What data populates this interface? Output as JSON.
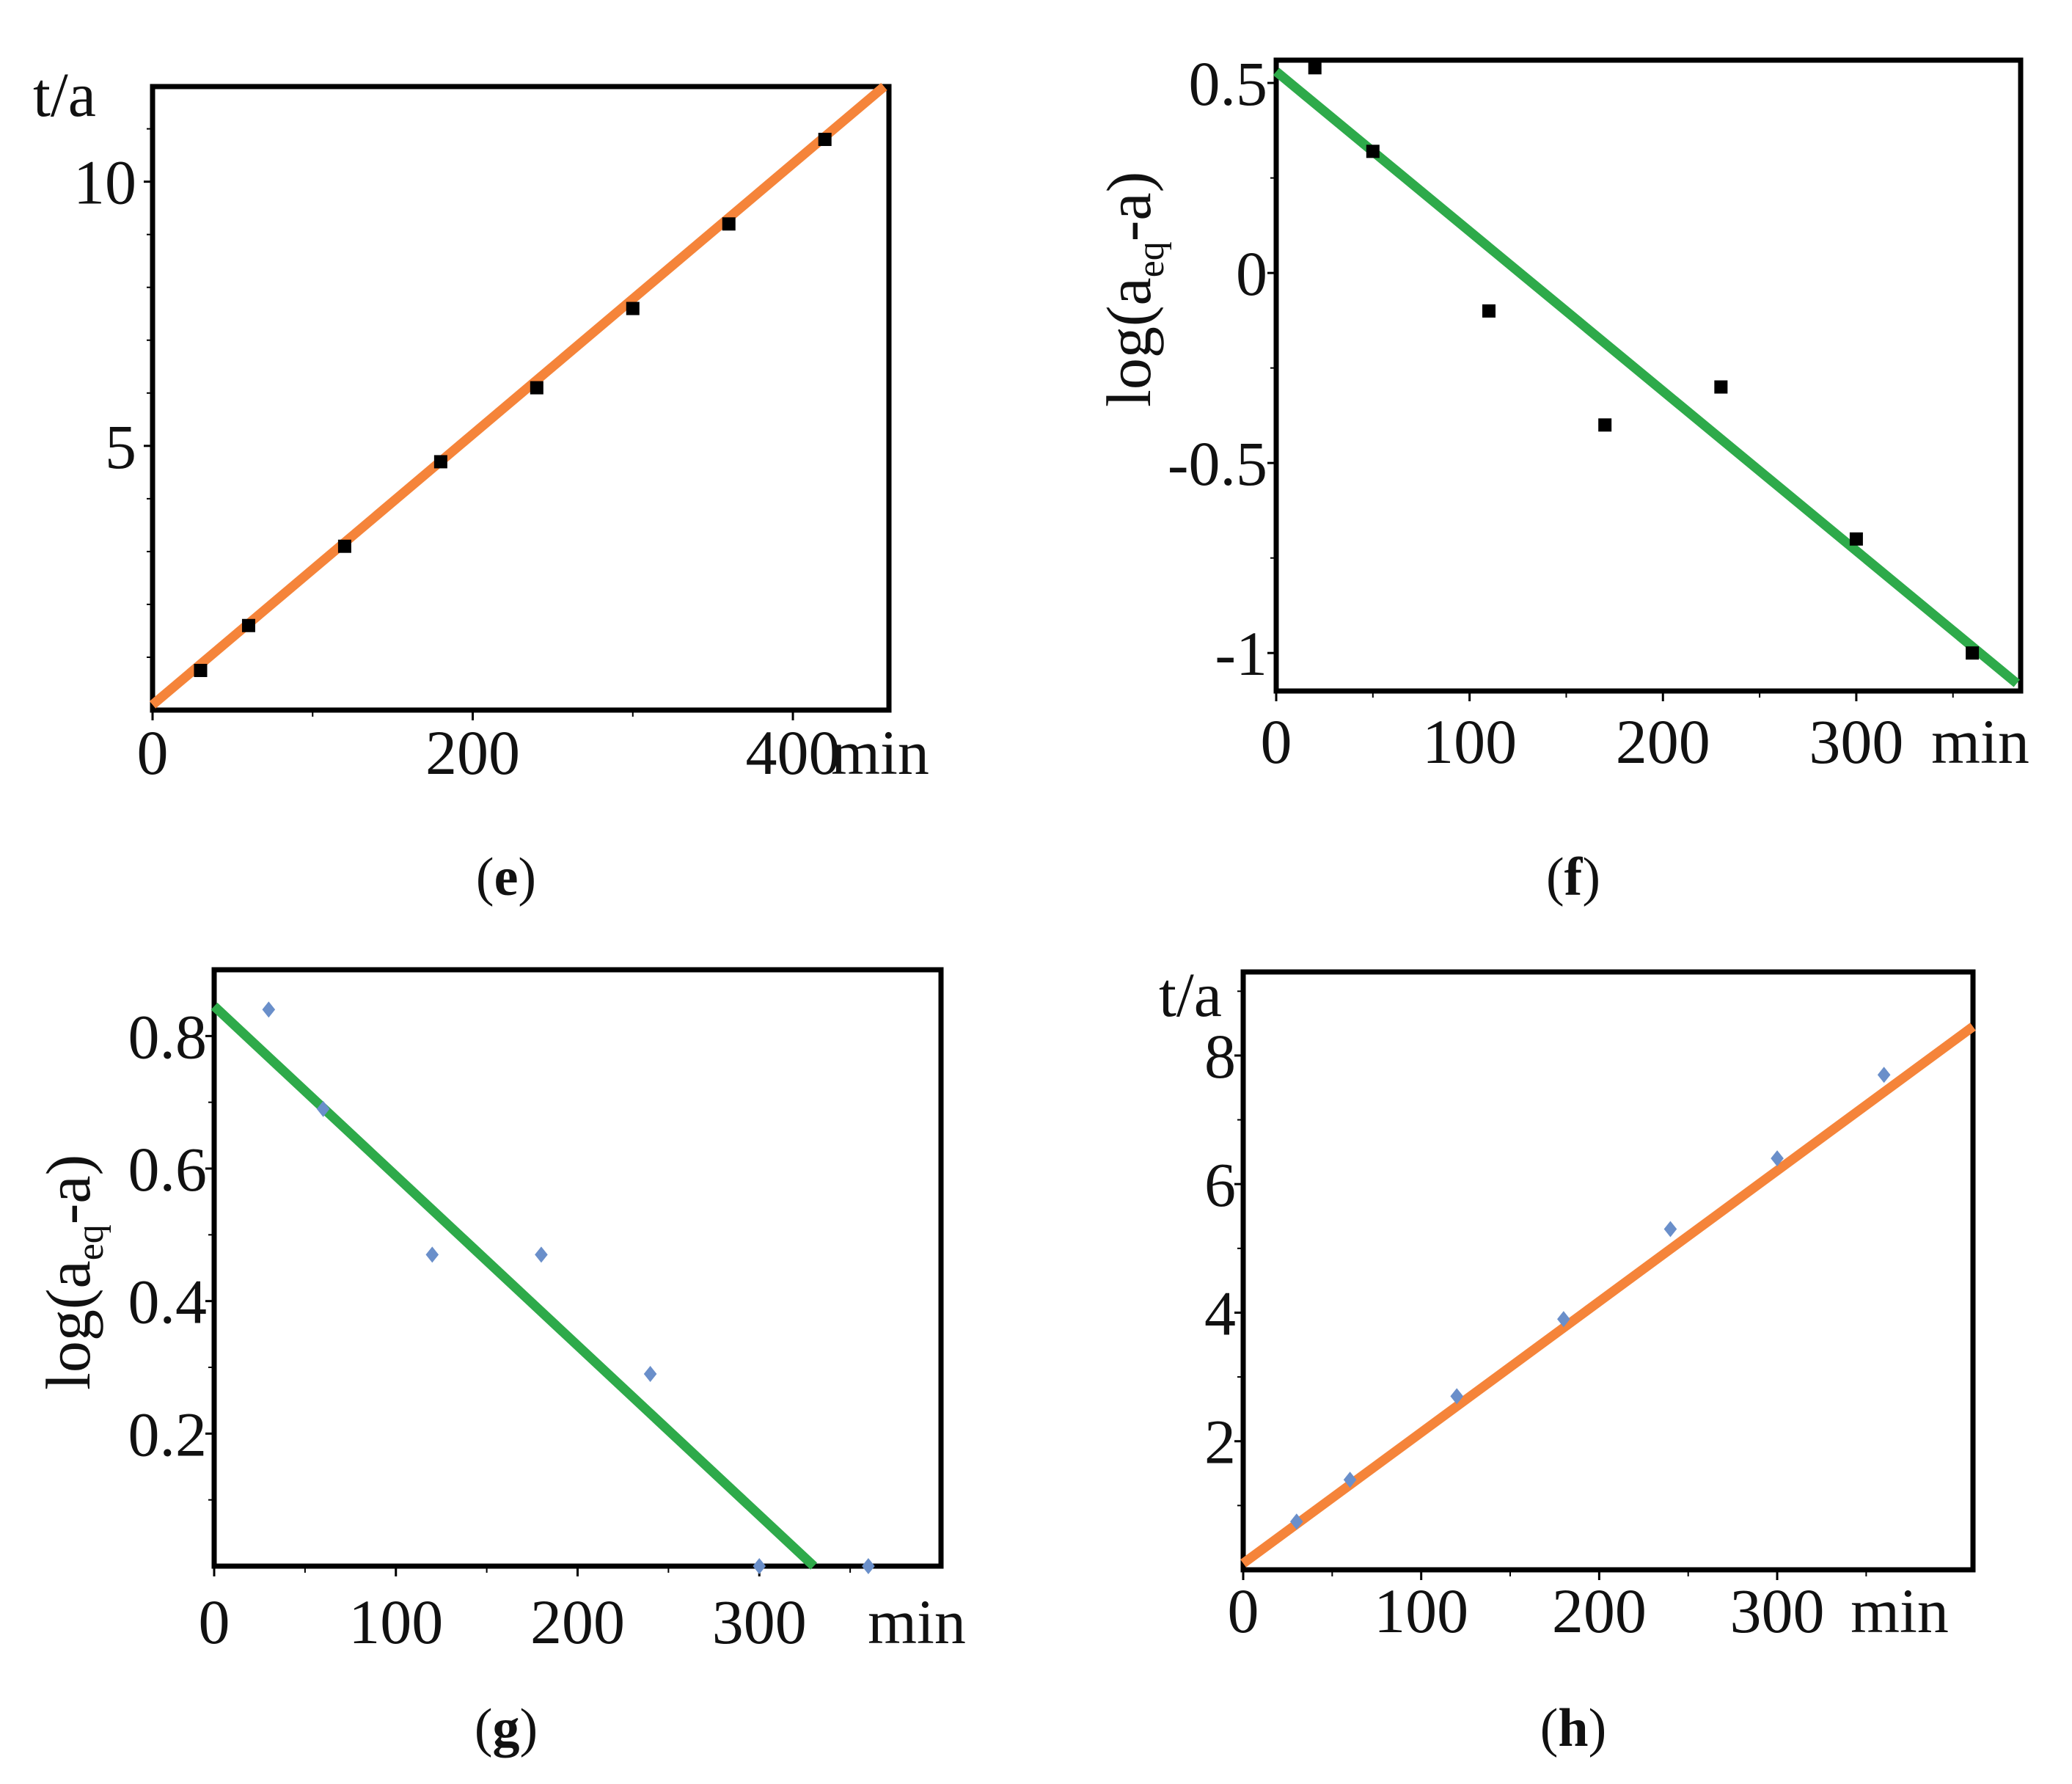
{
  "colors": {
    "frame": "#000000",
    "text": "#111111",
    "orange_fit": "#f5843a",
    "green_fit": "#2eaa4a",
    "black_marker": "#000000",
    "blue_marker": "#6a8fca"
  },
  "chart_data": [
    {
      "id": "e",
      "type": "scatter",
      "caption": {
        "open": "(",
        "letter": "e",
        "close": ")"
      },
      "ylabel": "t/a",
      "xlabel": "min",
      "xlim": [
        0,
        460
      ],
      "ylim": [
        0,
        11.8
      ],
      "x_ticks": [
        0,
        200,
        400
      ],
      "x_tick_labels": [
        "0",
        "200",
        "400"
      ],
      "y_ticks": [
        5,
        10
      ],
      "y_tick_labels": [
        "5",
        "10"
      ],
      "y_minor_ticks": [
        1,
        2,
        3,
        4,
        6,
        7,
        8,
        9,
        11
      ],
      "marker": "square",
      "marker_color_key": "black_marker",
      "fit_color_key": "orange_fit",
      "fit": {
        "x": [
          0,
          457
        ],
        "y": [
          0.1,
          11.8
        ]
      },
      "points": {
        "x": [
          30,
          60,
          120,
          180,
          240,
          300,
          360,
          420
        ],
        "y": [
          0.75,
          1.6,
          3.1,
          4.7,
          6.1,
          7.6,
          9.2,
          10.8
        ]
      }
    },
    {
      "id": "f",
      "type": "scatter",
      "caption": {
        "open": "(",
        "letter": "f",
        "close": ")"
      },
      "ylabel": "log(a",
      "ylabel_sub": "eq",
      "ylabel_tail": "-a)",
      "xlabel": "min",
      "xlim": [
        0,
        385
      ],
      "ylim": [
        -1.1,
        0.56
      ],
      "x_ticks": [
        0,
        100,
        200,
        300
      ],
      "x_tick_labels": [
        "0",
        "100",
        "200",
        "300"
      ],
      "y_ticks": [
        0.5,
        0,
        -0.5,
        -1
      ],
      "y_tick_labels": [
        "0.5",
        "0",
        "-0.5",
        "-1"
      ],
      "y_minor_ticks": [
        0.25,
        -0.25,
        -0.75
      ],
      "marker": "square",
      "marker_color_key": "black_marker",
      "fit_color_key": "green_fit",
      "fit": {
        "x": [
          0,
          383
        ],
        "y": [
          0.53,
          -1.08
        ]
      },
      "points": {
        "x": [
          20,
          50,
          110,
          170,
          230,
          300,
          360
        ],
        "y": [
          0.54,
          0.32,
          -0.1,
          -0.4,
          -0.3,
          -0.7,
          -1.0
        ]
      }
    },
    {
      "id": "g",
      "type": "scatter",
      "caption": {
        "open": "(",
        "letter": "g",
        "close": ")"
      },
      "ylabel": "log(a",
      "ylabel_sub": "eq",
      "ylabel_tail": "-a)",
      "xlabel": "min",
      "xlim": [
        0,
        400
      ],
      "ylim": [
        0,
        0.9
      ],
      "x_ticks": [
        0,
        100,
        200,
        300
      ],
      "x_tick_labels": [
        "0",
        "100",
        "200",
        "300"
      ],
      "y_ticks": [
        0.2,
        0.4,
        0.6,
        0.8
      ],
      "y_tick_labels": [
        "0.2",
        "0.4",
        "0.6",
        "0.8"
      ],
      "y_minor_ticks": [
        0.1,
        0.3,
        0.5,
        0.7
      ],
      "marker": "diamond",
      "marker_color_key": "blue_marker",
      "fit_color_key": "green_fit",
      "fit": {
        "x": [
          0,
          330
        ],
        "y": [
          0.845,
          0.0
        ]
      },
      "points": {
        "x": [
          30,
          60,
          120,
          180,
          240,
          300,
          360
        ],
        "y": [
          0.84,
          0.69,
          0.47,
          0.47,
          0.29,
          0.0,
          0.0
        ]
      }
    },
    {
      "id": "h",
      "type": "scatter",
      "caption": {
        "open": "(",
        "letter": "h",
        "close": ")"
      },
      "ylabel": "t/a",
      "xlabel": "min",
      "xlim": [
        0,
        410
      ],
      "ylim": [
        0,
        9.3
      ],
      "x_ticks": [
        0,
        100,
        200,
        300
      ],
      "x_tick_labels": [
        "0",
        "100",
        "200",
        "300"
      ],
      "y_ticks": [
        2,
        4,
        6,
        8
      ],
      "y_tick_labels": [
        "2",
        "4",
        "6",
        "8"
      ],
      "y_minor_ticks": [
        1,
        3,
        5,
        7,
        9
      ],
      "marker": "diamond",
      "marker_color_key": "blue_marker",
      "fit_color_key": "orange_fit",
      "fit": {
        "x": [
          0,
          410
        ],
        "y": [
          0.1,
          8.45
        ]
      },
      "points": {
        "x": [
          30,
          60,
          120,
          180,
          240,
          300,
          360
        ],
        "y": [
          0.75,
          1.4,
          2.7,
          3.9,
          5.3,
          6.4,
          7.7
        ]
      }
    }
  ]
}
